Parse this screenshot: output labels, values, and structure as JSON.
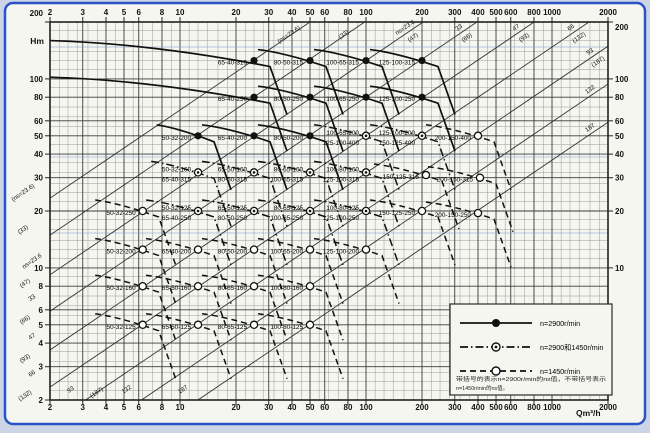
{
  "window": {
    "background": "#ccd5e6",
    "paper": "#f6f6f1",
    "border_color": "#2c52c8",
    "grid_minor_color": "#9a9a96",
    "grid_major_color": "#3a3a3a",
    "scan_line_color": "#7e97cc"
  },
  "chart_data": {
    "type": "line",
    "subtype": "pump-selection-spectrum",
    "x_axis": {
      "unit_label": "Qm³/h",
      "scale": "log",
      "range": [
        2,
        2000
      ],
      "ticks": [
        2,
        3,
        4,
        5,
        6,
        8,
        10,
        20,
        30,
        40,
        50,
        60,
        80,
        100,
        200,
        300,
        400,
        500,
        600,
        800,
        1000,
        2000
      ]
    },
    "y_axis": {
      "unit_label": "Hm",
      "scale": "log",
      "range": [
        2,
        200
      ],
      "ticks": [
        200,
        100,
        80,
        60,
        50,
        40,
        30,
        20,
        10,
        8,
        6,
        5,
        4,
        3,
        2
      ],
      "right_ticks": [
        200,
        100,
        80,
        60,
        50,
        40,
        30,
        20,
        10
      ]
    },
    "ns_lines": [
      {
        "label": "",
        "bracket_label": "(ns=23.6)",
        "H_at_Q2": 23.4
      },
      {
        "label": "",
        "bracket_label": "(33)",
        "H_at_Q2": 14.9
      },
      {
        "label": "ns=23.6",
        "bracket_label": "(47)",
        "H_at_Q2": 9.2
      },
      {
        "label": "33",
        "bracket_label": "(66)",
        "H_at_Q2": 5.9
      },
      {
        "label": "47",
        "bracket_label": "(93)",
        "H_at_Q2": 3.68
      },
      {
        "label": "66",
        "bracket_label": "(132)",
        "H_at_Q2": 2.34
      },
      {
        "label": "93",
        "bracket_label": "(187)",
        "H_at_Q2": 1.49
      },
      {
        "label": "132",
        "bracket_label": "",
        "H_at_Q2": 0.94
      },
      {
        "label": "187",
        "bracket_label": "",
        "H_at_Q2": 0.59
      }
    ],
    "pump_rows": [
      {
        "style": "solid",
        "marker": "filled",
        "lead_q": 2,
        "points": [
          {
            "q": 25,
            "h": 125,
            "labels": [
              "65-40-315"
            ]
          },
          {
            "q": 50,
            "h": 125,
            "labels": [
              "80-50-315"
            ]
          },
          {
            "q": 100,
            "h": 125,
            "labels": [
              "100-65-315"
            ]
          },
          {
            "q": 200,
            "h": 125,
            "labels": [
              "125-100-315"
            ]
          }
        ]
      },
      {
        "style": "solid",
        "marker": "filled",
        "lead_q": 2,
        "points": [
          {
            "q": 25,
            "h": 80,
            "labels": [
              "65-40-250"
            ]
          },
          {
            "q": 50,
            "h": 80,
            "labels": [
              "80-50-250"
            ]
          },
          {
            "q": 100,
            "h": 80,
            "labels": [
              "100-65-250"
            ]
          },
          {
            "q": 200,
            "h": 80,
            "labels": [
              "125-100-250"
            ]
          }
        ]
      },
      {
        "style": "solid",
        "marker": "filled",
        "lead_q": 7.5,
        "points": [
          {
            "q": 12.5,
            "h": 50,
            "labels": [
              "50-32-200"
            ]
          },
          {
            "q": 25,
            "h": 50,
            "labels": [
              "65-40-200"
            ]
          },
          {
            "q": 50,
            "h": 50,
            "labels": [
              "80-50-200"
            ]
          },
          {
            "q": 100,
            "h": 50,
            "labels": [
              "100-65-200",
              "125-100-400"
            ],
            "style": "dashdot",
            "marker": "dual"
          },
          {
            "q": 200,
            "h": 50,
            "labels": [
              "125-100-200",
              "150-125-400"
            ],
            "style": "dashdot",
            "marker": "dual"
          },
          {
            "q": 400,
            "h": 50,
            "labels": [
              "200-150-400"
            ],
            "style": "dashed",
            "marker": "open"
          }
        ]
      },
      {
        "style": "dashdot",
        "marker": "dual",
        "lead_q": 7,
        "points": [
          {
            "q": 12.5,
            "h": 32,
            "labels": [
              "50-32-160",
              "65-40-315"
            ]
          },
          {
            "q": 25,
            "h": 32,
            "labels": [
              "65-50-160",
              "80-50-315"
            ]
          },
          {
            "q": 50,
            "h": 32,
            "labels": [
              "80-65-160",
              "100-65-315"
            ]
          },
          {
            "q": 100,
            "h": 32,
            "labels": [
              "100-80-160",
              "125-100-315"
            ]
          },
          {
            "q": 210,
            "h": 31,
            "labels": [
              "150-125-315"
            ],
            "style": "dashed",
            "marker": "open"
          },
          {
            "q": 410,
            "h": 30,
            "labels": [
              "200-150-315"
            ],
            "style": "dashed",
            "marker": "open"
          }
        ]
      },
      {
        "style": "dashdot",
        "marker": "dual",
        "lead_q": 3.5,
        "points": [
          {
            "q": 6.3,
            "h": 20,
            "labels": [
              "50-32-250"
            ],
            "style": "dashed",
            "marker": "open"
          },
          {
            "q": 12.5,
            "h": 20,
            "labels": [
              "50-32-125",
              "65-40-250"
            ]
          },
          {
            "q": 25,
            "h": 20,
            "labels": [
              "65-50-125",
              "80-50-250"
            ]
          },
          {
            "q": 50,
            "h": 20,
            "labels": [
              "80-65-125",
              "100-65-250"
            ]
          },
          {
            "q": 100,
            "h": 20,
            "labels": [
              "100-80-125",
              "125-100-250"
            ]
          },
          {
            "q": 200,
            "h": 20,
            "labels": [
              "150-125-250"
            ],
            "style": "dashed",
            "marker": "open"
          },
          {
            "q": 400,
            "h": 19.5,
            "labels": [
              "200-150-250"
            ],
            "style": "dashed",
            "marker": "open"
          }
        ]
      },
      {
        "style": "dashed",
        "marker": "open",
        "lead_q": 3.5,
        "points": [
          {
            "q": 6.3,
            "h": 12.5,
            "labels": [
              "50-32-200"
            ]
          },
          {
            "q": 12.5,
            "h": 12.5,
            "labels": [
              "65-40-200"
            ]
          },
          {
            "q": 25,
            "h": 12.5,
            "labels": [
              "80-50-200"
            ]
          },
          {
            "q": 50,
            "h": 12.5,
            "labels": [
              "100-65-200"
            ]
          },
          {
            "q": 100,
            "h": 12.5,
            "labels": [
              "125-100-200"
            ]
          }
        ]
      },
      {
        "style": "dashed",
        "marker": "open",
        "lead_q": 3.5,
        "points": [
          {
            "q": 6.3,
            "h": 8,
            "labels": [
              "50-32-160"
            ]
          },
          {
            "q": 12.5,
            "h": 8,
            "labels": [
              "65-50-160"
            ]
          },
          {
            "q": 25,
            "h": 8,
            "labels": [
              "80-65-160"
            ]
          },
          {
            "q": 50,
            "h": 8,
            "labels": [
              "100-80-160"
            ]
          }
        ]
      },
      {
        "style": "dashed",
        "marker": "open",
        "lead_q": 3.5,
        "points": [
          {
            "q": 6.3,
            "h": 5,
            "labels": [
              "50-32-125"
            ]
          },
          {
            "q": 12.5,
            "h": 5,
            "labels": [
              "65-50-125"
            ]
          },
          {
            "q": 25,
            "h": 5,
            "labels": [
              "80-65-125"
            ]
          },
          {
            "q": 50,
            "h": 5,
            "labels": [
              "100-80-125"
            ]
          }
        ]
      }
    ],
    "legend": {
      "entries": [
        {
          "line": "solid",
          "marker": "filled",
          "label": "n=2900r/min"
        },
        {
          "line": "dashdot",
          "marker": "dual",
          "label": "n=2900和1450r/min"
        },
        {
          "line": "dashed",
          "marker": "open",
          "label": "n=1450r/min"
        }
      ],
      "note_lines": [
        "带括号的表示n=2900r/min的ns值，不带括号表示",
        "n=1450r/min的ns值。"
      ]
    }
  }
}
